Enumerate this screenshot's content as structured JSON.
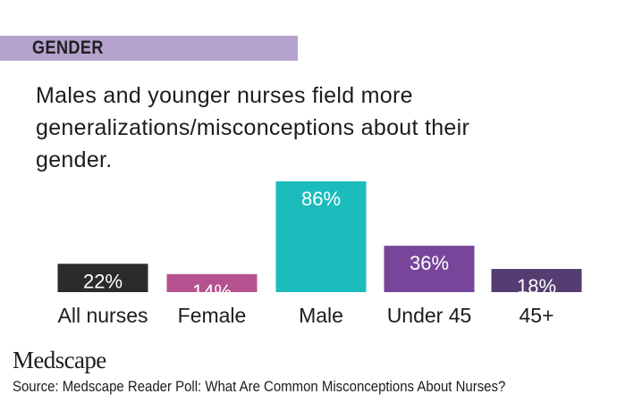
{
  "header": {
    "section_label": "GENDER",
    "headline": "Males and younger nurses field more generalizations/misconceptions about their gender."
  },
  "chart_data": {
    "type": "bar",
    "categories": [
      "All nurses",
      "Female",
      "Male",
      "Under 45",
      "45+"
    ],
    "values": [
      22,
      14,
      86,
      36,
      18
    ],
    "value_labels": [
      "22%",
      "14%",
      "86%",
      "36%",
      "18%"
    ],
    "colors": [
      "#2b2b2b",
      "#b5518f",
      "#1cbcbc",
      "#77469a",
      "#553d72"
    ],
    "ylim": [
      0,
      100
    ],
    "grid": false,
    "legend": "none"
  },
  "footer": {
    "logo": "Medscape",
    "source": "Source: Medscape Reader Poll: What Are Common Misconceptions About Nurses?"
  }
}
